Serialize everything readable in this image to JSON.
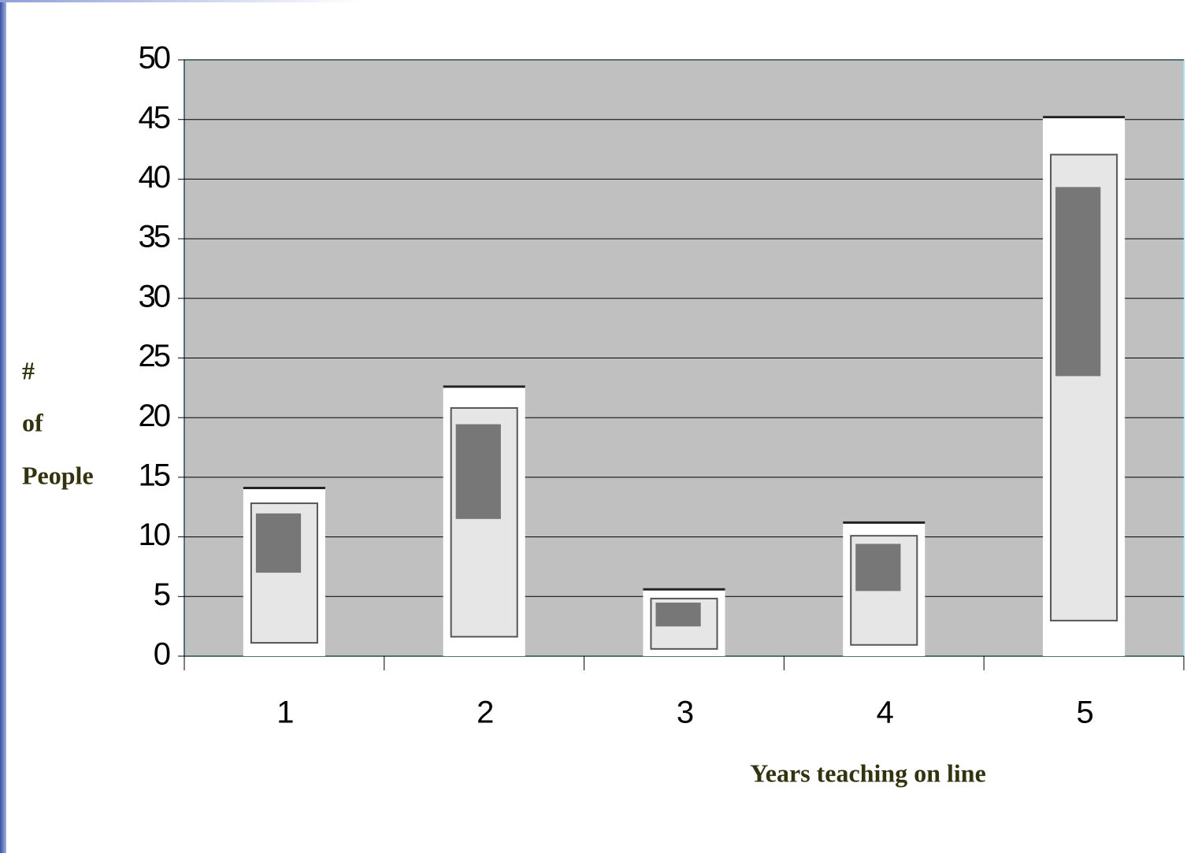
{
  "chart_data": {
    "type": "bar",
    "y_label": [
      "#",
      "of",
      "People"
    ],
    "x_label": "Years teaching on line",
    "categories": [
      "1",
      "2",
      "3",
      "4",
      "5"
    ],
    "values": [
      14.2,
      22.7,
      5.7,
      11.3,
      45.3
    ],
    "color": "#ffffff",
    "ylim": [
      0,
      50
    ],
    "yticks": [
      0,
      5,
      10,
      15,
      20,
      25,
      30,
      35,
      40,
      45,
      50
    ],
    "grid": true
  }
}
